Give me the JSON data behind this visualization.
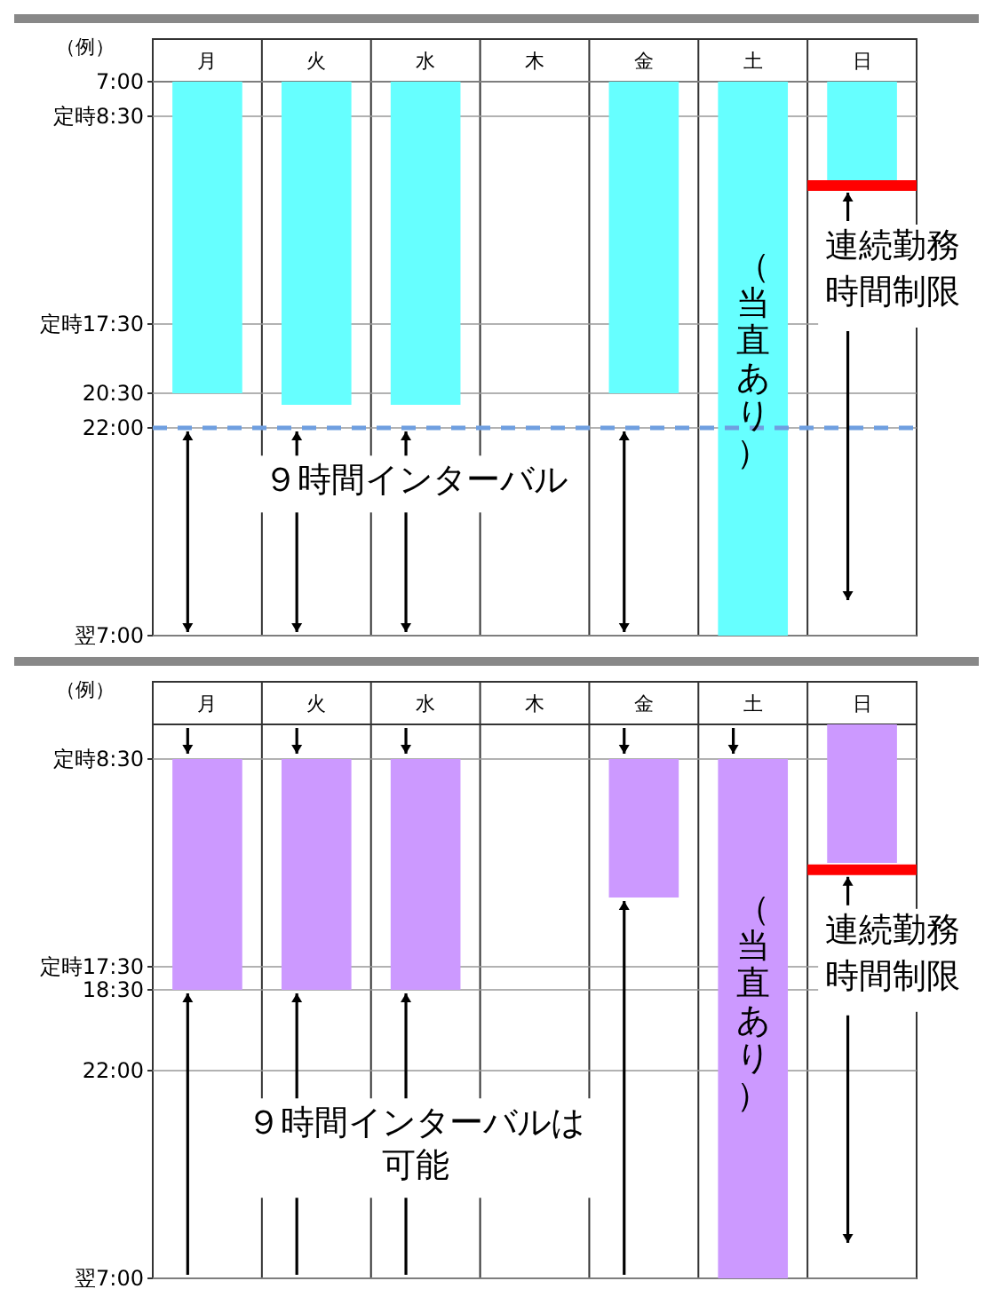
{
  "chart_data": [
    {
      "type": "bar",
      "categories": [
        "月",
        "火",
        "水",
        "木",
        "金",
        "土",
        "日"
      ],
      "base": [
        7,
        7,
        7,
        null,
        7,
        7,
        7
      ],
      "values": [
        13.5,
        14,
        14,
        null,
        13.5,
        24,
        4.3
      ],
      "color": "#66ffff",
      "ylim": [
        31,
        7
      ],
      "yticks": [
        {
          "value": 7,
          "label": "7:00"
        },
        {
          "value": 8.5,
          "label": "定時8:30"
        },
        {
          "value": 17.5,
          "label": "定時17:30"
        },
        {
          "value": 20.5,
          "label": "20:30"
        },
        {
          "value": 22,
          "label": "22:00"
        },
        {
          "value": 31,
          "label": "翌7:00"
        }
      ],
      "grid": "y",
      "ref_lines": [
        {
          "axis": "y",
          "value": 22,
          "color": "#6f9fe0",
          "line_style": "dashed"
        },
        {
          "axis": "y",
          "value": 11.5,
          "label": "連続勤務時間制限",
          "color": "#ff0000"
        }
      ],
      "annotations": [
        "（例）",
        "９時間インターバル",
        "（当直あり）"
      ]
    },
    {
      "type": "bar",
      "categories": [
        "月",
        "火",
        "水",
        "木",
        "金",
        "土",
        "日"
      ],
      "base": [
        8.5,
        8.5,
        8.5,
        null,
        8.5,
        8.5,
        7
      ],
      "values": [
        10,
        10,
        10,
        null,
        6,
        22.5,
        6
      ],
      "color": "#cc99ff",
      "ylim": [
        31,
        7
      ],
      "yticks": [
        {
          "value": 8.5,
          "label": "定時8:30"
        },
        {
          "value": 17.5,
          "label": "定時17:30"
        },
        {
          "value": 18.5,
          "label": "18:30"
        },
        {
          "value": 22,
          "label": "22:00"
        },
        {
          "value": 31,
          "label": "翌7:00"
        }
      ],
      "grid": "y",
      "ref_lines": [
        {
          "axis": "y",
          "value": 13.3,
          "label": "連続勤務時間制限",
          "color": "#ff0000"
        }
      ],
      "annotations": [
        "（例）",
        "９時間インターバルは可能",
        "（当直あり）"
      ]
    }
  ]
}
